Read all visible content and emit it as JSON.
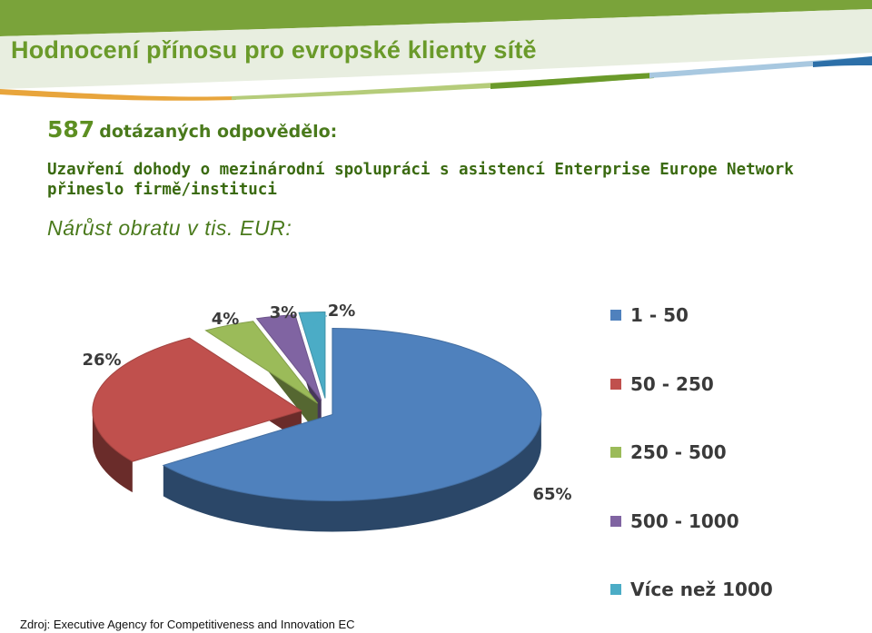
{
  "header": {
    "title": "Hodnocení přínosu pro evropské klienty sítě"
  },
  "respondents": {
    "count": "587",
    "label": "dotázaných odpovědělo:"
  },
  "description": "Uzavření dohody o mezinárodní spolupráci s asistencí Enterprise Europe Network přineslo firmě/instituci",
  "subtitle": "Nárůst obratu v tis. EUR:",
  "source": "Zdroj: Executive Agency for Competitiveness and Innovation EC",
  "colors": {
    "header_green": "#7aa33a",
    "header_light": "#c9d8b0",
    "header_orange": "#e8a53c",
    "header_blue": "#2c6fa8"
  },
  "chart_data": {
    "type": "pie",
    "title": "",
    "categories": [
      "1 - 50",
      "50 - 250",
      "250 - 500",
      "500 - 1000",
      "Více než 1000"
    ],
    "values": [
      65,
      26,
      4,
      3,
      2
    ],
    "labels": [
      "65%",
      "26%",
      "4%",
      "3%",
      "2%"
    ],
    "colors": [
      "#4f81bd",
      "#c0504d",
      "#9bbb59",
      "#8064a2",
      "#4bacc6"
    ],
    "style": "3d-exploded",
    "legend_position": "right"
  }
}
